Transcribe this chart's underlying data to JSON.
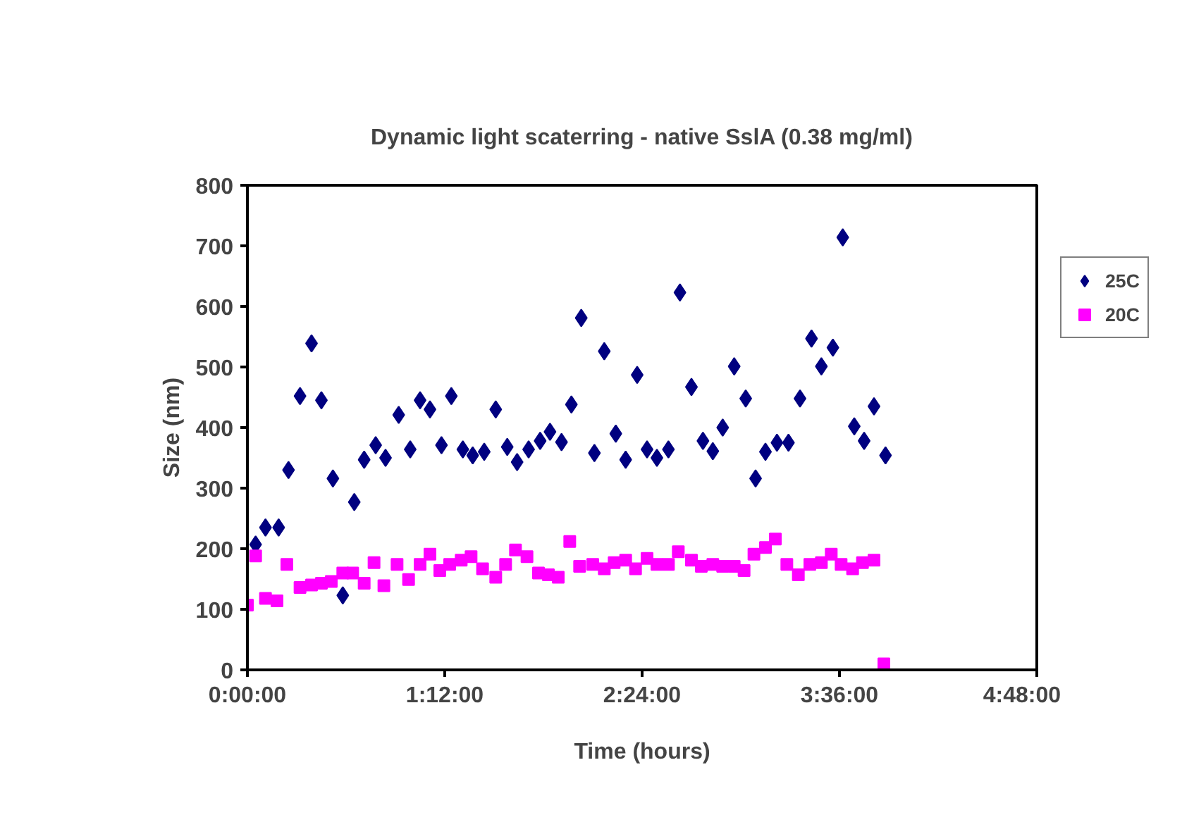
{
  "chart_data": {
    "type": "scatter",
    "title": "Dynamic light scaterring - native SslA (0.38 mg/ml)",
    "xlabel": "Time (hours)",
    "ylabel": "Size (nm)",
    "xlim": [
      0,
      4.8
    ],
    "ylim": [
      0,
      800
    ],
    "xticks": [
      {
        "value": 0,
        "label": "0:00:00"
      },
      {
        "value": 1.2,
        "label": "1:12:00"
      },
      {
        "value": 2.4,
        "label": "2:24:00"
      },
      {
        "value": 3.6,
        "label": "3:36:00"
      },
      {
        "value": 4.8,
        "label": "4:48:00"
      }
    ],
    "yticks": [
      0,
      100,
      200,
      300,
      400,
      500,
      600,
      700,
      800
    ],
    "grid": false,
    "legend": "right",
    "series": [
      {
        "name": "25C",
        "color": "#000080",
        "marker": "diamond",
        "x": [
          0.05,
          0.11,
          0.19,
          0.25,
          0.32,
          0.39,
          0.45,
          0.52,
          0.58,
          0.65,
          0.71,
          0.78,
          0.84,
          0.92,
          0.99,
          1.05,
          1.11,
          1.18,
          1.24,
          1.31,
          1.37,
          1.44,
          1.51,
          1.58,
          1.64,
          1.71,
          1.78,
          1.84,
          1.91,
          1.97,
          2.03,
          2.11,
          2.17,
          2.24,
          2.3,
          2.37,
          2.43,
          2.49,
          2.56,
          2.63,
          2.7,
          2.77,
          2.83,
          2.89,
          2.96,
          3.03,
          3.09,
          3.15,
          3.22,
          3.29,
          3.36,
          3.43,
          3.49,
          3.56,
          3.62,
          3.69,
          3.75,
          3.81,
          3.88
        ],
        "values": [
          207,
          235,
          235,
          330,
          452,
          539,
          445,
          316,
          123,
          277,
          347,
          371,
          350,
          421,
          364,
          445,
          430,
          371,
          452,
          364,
          354,
          360,
          430,
          368,
          343,
          364,
          378,
          393,
          376,
          438,
          581,
          358,
          526,
          390,
          347,
          487,
          364,
          350,
          364,
          623,
          467,
          378,
          361,
          400,
          501,
          448,
          316,
          360,
          375,
          375,
          448,
          547,
          501,
          532,
          714,
          402,
          378,
          435,
          354
        ]
      },
      {
        "name": "20C",
        "color": "#ff00ff",
        "marker": "square",
        "x": [
          0,
          0.05,
          0.11,
          0.18,
          0.24,
          0.32,
          0.39,
          0.45,
          0.51,
          0.58,
          0.64,
          0.71,
          0.77,
          0.83,
          0.91,
          0.98,
          1.05,
          1.11,
          1.17,
          1.23,
          1.3,
          1.36,
          1.43,
          1.51,
          1.57,
          1.63,
          1.7,
          1.77,
          1.83,
          1.89,
          1.96,
          2.02,
          2.1,
          2.17,
          2.23,
          2.3,
          2.36,
          2.43,
          2.49,
          2.56,
          2.62,
          2.7,
          2.76,
          2.83,
          2.89,
          2.96,
          3.02,
          3.08,
          3.15,
          3.21,
          3.28,
          3.35,
          3.42,
          3.49,
          3.55,
          3.61,
          3.68,
          3.74,
          3.81,
          3.87
        ],
        "values": [
          107,
          188,
          118,
          114,
          174,
          136,
          140,
          143,
          146,
          160,
          160,
          143,
          177,
          139,
          174,
          149,
          174,
          191,
          164,
          174,
          181,
          187,
          167,
          153,
          174,
          198,
          187,
          160,
          157,
          153,
          212,
          171,
          174,
          167,
          177,
          181,
          167,
          184,
          174,
          174,
          195,
          181,
          171,
          174,
          171,
          171,
          164,
          191,
          202,
          216,
          174,
          157,
          174,
          177,
          191,
          174,
          167,
          177,
          181,
          10
        ]
      }
    ]
  }
}
